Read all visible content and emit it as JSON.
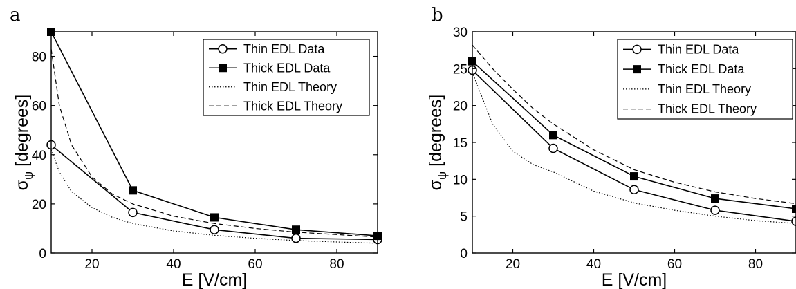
{
  "chart_data": [
    {
      "type": "line",
      "panel_label": "a",
      "xlabel": "E [V/cm]",
      "ylabel": "σ_ψ [degrees]",
      "ylabel_main": "σ",
      "ylabel_sub": "ψ",
      "ylabel_rest": " [degrees]",
      "xlim": [
        10,
        90
      ],
      "ylim": [
        0,
        90
      ],
      "xticks": [
        "20",
        "40",
        "60",
        "80"
      ],
      "yticks": [
        "0",
        "20",
        "40",
        "60",
        "80"
      ],
      "grid": false,
      "legend_position": "top-right",
      "series": [
        {
          "name": "Thin EDL Data",
          "style": "solid-open-circle",
          "x": [
            10,
            30,
            50,
            70,
            90
          ],
          "y": [
            44,
            16.5,
            9.5,
            6,
            5.5
          ]
        },
        {
          "name": "Thick EDL Data",
          "style": "solid-filled-square",
          "x": [
            10,
            30,
            50,
            70,
            90
          ],
          "y": [
            90,
            25.5,
            14.5,
            9.5,
            7
          ]
        },
        {
          "name": "Thin EDL Theory",
          "style": "dotted",
          "x": [
            10,
            12,
            15,
            20,
            25,
            30,
            40,
            50,
            60,
            70,
            80,
            90
          ],
          "y": [
            42,
            33,
            25,
            18.5,
            14.5,
            12,
            9,
            7.2,
            6,
            5.1,
            4.5,
            4
          ]
        },
        {
          "name": "Thick EDL Theory",
          "style": "dashed",
          "x": [
            10,
            12,
            15,
            20,
            25,
            30,
            40,
            50,
            60,
            70,
            80,
            90
          ],
          "y": [
            83,
            60,
            44,
            31,
            24,
            20,
            15,
            12,
            10,
            8.5,
            7.5,
            6.5
          ]
        }
      ]
    },
    {
      "type": "line",
      "panel_label": "b",
      "xlabel": "E [V/cm]",
      "ylabel": "σ_ψ [degrees]",
      "ylabel_main": "σ",
      "ylabel_sub": "ψ",
      "ylabel_rest": " [degrees]",
      "xlim": [
        10,
        90
      ],
      "ylim": [
        0,
        30
      ],
      "xticks": [
        "20",
        "40",
        "60",
        "80"
      ],
      "yticks": [
        "0",
        "5",
        "10",
        "15",
        "20",
        "25",
        "30"
      ],
      "grid": false,
      "legend_position": "top-right",
      "series": [
        {
          "name": "Thin EDL Data",
          "style": "solid-open-circle",
          "x": [
            10,
            30,
            50,
            70,
            90
          ],
          "y": [
            24.8,
            14.2,
            8.6,
            5.8,
            4.3
          ]
        },
        {
          "name": "Thick EDL Data",
          "style": "solid-filled-square",
          "x": [
            10,
            30,
            50,
            70,
            90
          ],
          "y": [
            26,
            16,
            10.4,
            7.4,
            6
          ]
        },
        {
          "name": "Thin EDL Theory",
          "style": "dotted",
          "x": [
            10,
            15,
            20,
            25,
            30,
            40,
            50,
            60,
            70,
            80,
            90
          ],
          "y": [
            24.5,
            17.5,
            13.8,
            12,
            11,
            8.4,
            6.8,
            5.8,
            5.0,
            4.4,
            4.0
          ]
        },
        {
          "name": "Thick EDL Theory",
          "style": "dashed",
          "x": [
            10,
            15,
            20,
            25,
            30,
            40,
            50,
            60,
            70,
            80,
            90
          ],
          "y": [
            28.2,
            25,
            22.2,
            19.6,
            17.5,
            14,
            11.3,
            9.6,
            8.3,
            7.4,
            6.7
          ]
        }
      ]
    }
  ]
}
